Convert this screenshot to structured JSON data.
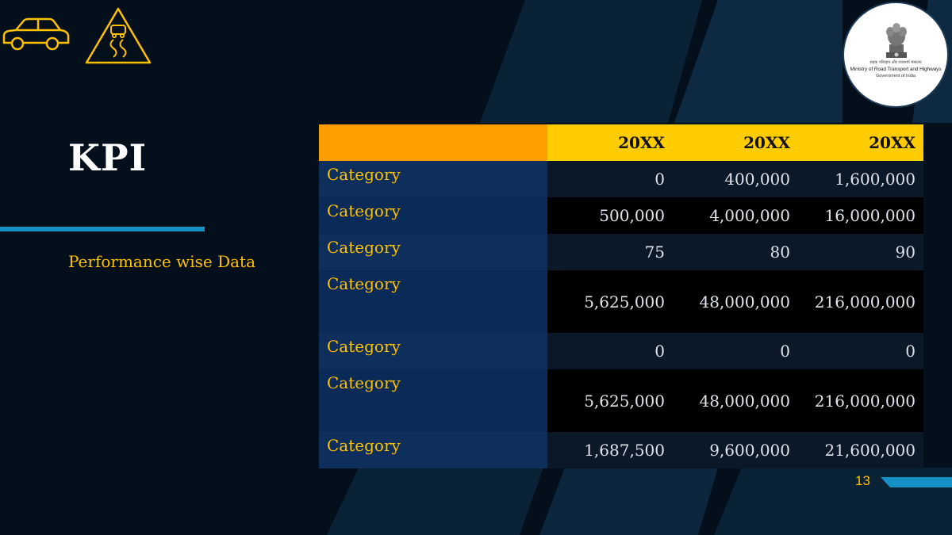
{
  "colors": {
    "background": "#03101c",
    "accent_yellow": "#ffc000",
    "header_yellow": "#ffcc00",
    "header_orange": "#ff9e00",
    "divider_blue": "#1791c5",
    "category_blue": "#0e2f5c"
  },
  "icons": [
    "car-icon",
    "slippery-road-warning-icon",
    "emblem-icon"
  ],
  "logo": {
    "hindi_text": "सड़क परिवहन और राजमार्ग मंत्रालय",
    "line1": "Ministry of Road Transport and Highways",
    "line2": "Government of India"
  },
  "slide": {
    "title": "KPI",
    "subtitle": "Performance wise Data",
    "page_number": "13"
  },
  "table": {
    "headers": [
      "",
      "20XX",
      "20XX",
      "20XX"
    ],
    "rows": [
      {
        "label": "Category",
        "values": [
          "0",
          "400,000",
          "1,600,000"
        ]
      },
      {
        "label": "Category",
        "values": [
          "500,000",
          "4,000,000",
          "16,000,000"
        ]
      },
      {
        "label": "Category",
        "values": [
          "75",
          "80",
          "90"
        ]
      },
      {
        "label": "Category",
        "values": [
          "5,625,000",
          "48,000,000",
          "216,000,000"
        ]
      },
      {
        "label": "Category",
        "values": [
          "0",
          "0",
          "0"
        ]
      },
      {
        "label": "Category",
        "values": [
          "5,625,000",
          "48,000,000",
          "216,000,000"
        ]
      },
      {
        "label": "Category",
        "values": [
          "1,687,500",
          "9,600,000",
          "21,600,000"
        ]
      }
    ]
  }
}
